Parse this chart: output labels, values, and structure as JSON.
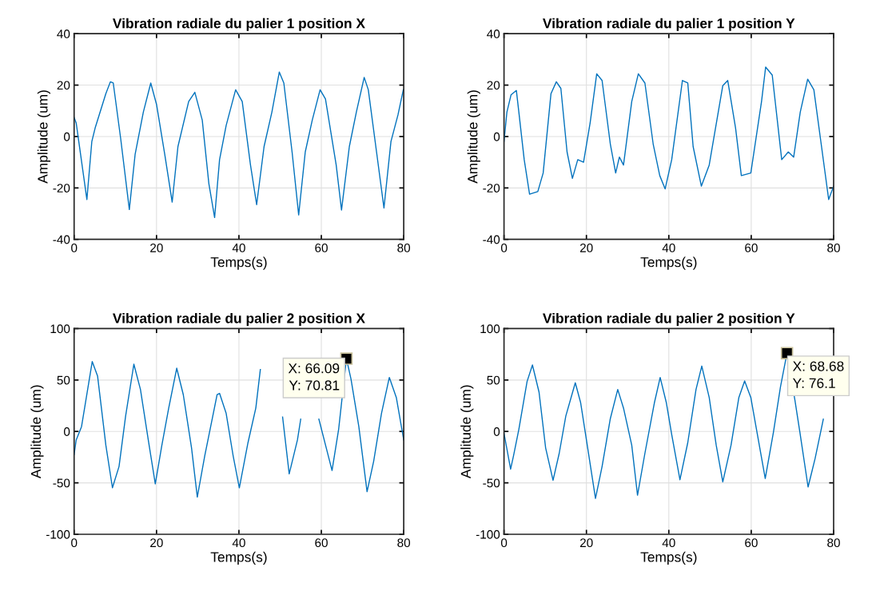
{
  "chart_data": [
    {
      "type": "line",
      "title": "Vibration radiale du palier 1 position X",
      "xlabel": "Temps(s)",
      "ylabel": "Amplitude (um)",
      "xlim": [
        0,
        80
      ],
      "xticks": [
        0,
        20,
        40,
        60,
        80
      ],
      "ylim": [
        -40,
        40
      ],
      "yticks": [
        -40,
        -20,
        0,
        20,
        40
      ],
      "grid": true,
      "series": [
        {
          "color": "#0072bd",
          "x": [
            0,
            0.5,
            3.1,
            4.3,
            5.1,
            7.7,
            8.8,
            9.5,
            11.3,
            13.4,
            14.8,
            16.8,
            18.6,
            20,
            22,
            23.8,
            25.2,
            27.8,
            29.3,
            31.1,
            32.7,
            34.1,
            35.3,
            36.9,
            39.2,
            40.8,
            42.8,
            44.3,
            46.1,
            48,
            49.8,
            50.9,
            52.9,
            54.5,
            56.1,
            57.8,
            59.7,
            61,
            63.6,
            64.9,
            66.8,
            68.5,
            70.4,
            71.4,
            73.4,
            75.2,
            76.9,
            78.6,
            79.9
          ],
          "values": [
            7.4,
            5.3,
            -24.5,
            -1.9,
            3.3,
            16.7,
            21.3,
            20.8,
            -0.8,
            -28.4,
            -7,
            9.5,
            20.8,
            12.5,
            -7,
            -25.5,
            -3.9,
            13.6,
            17.2,
            6.4,
            -18.3,
            -31.5,
            -9,
            4.3,
            18.2,
            13.6,
            -11,
            -26.5,
            -3.9,
            9.5,
            25.1,
            20.8,
            -6,
            -30.5,
            -6,
            6.4,
            18.2,
            14.6,
            -11,
            -28.6,
            -3.9,
            9.5,
            23,
            18.2,
            -6,
            -27.8,
            -1.9,
            8.4,
            18.2
          ]
        }
      ]
    },
    {
      "type": "line",
      "title": "Vibration radiale du palier 1 position Y",
      "xlabel": "Temps(s)",
      "ylabel": "Amplitude (um)",
      "xlim": [
        0,
        80
      ],
      "xticks": [
        0,
        20,
        40,
        60,
        80
      ],
      "ylim": [
        -40,
        40
      ],
      "yticks": [
        -40,
        -20,
        0,
        20,
        40
      ],
      "grid": true,
      "series": [
        {
          "color": "#0072bd",
          "x": [
            0,
            0.7,
            1.7,
            3,
            3.6,
            4.9,
            6.2,
            8.2,
            9.5,
            11.4,
            12.7,
            13.8,
            15.3,
            16.6,
            17.9,
            19.3,
            20.9,
            22.5,
            23.8,
            25.8,
            27.1,
            28,
            29,
            31,
            32.6,
            34.2,
            36.2,
            37.8,
            39.1,
            40.7,
            43.3,
            44.6,
            45.9,
            47.9,
            49.8,
            53.1,
            54.3,
            56.2,
            57.6,
            59.9,
            62.5,
            63.5,
            65.1,
            67.4,
            69,
            70.3,
            71.9,
            73.7,
            75.2,
            76.8,
            78.8,
            80
          ],
          "values": [
            -1.9,
            9.5,
            16.2,
            17.9,
            9.5,
            -9,
            -22.4,
            -21.4,
            -14.2,
            16.7,
            21.3,
            18.7,
            -6,
            -16.3,
            -9,
            -10,
            5.3,
            24.4,
            21.8,
            -2.9,
            -14.2,
            -8,
            -11.1,
            13.6,
            24.4,
            20.8,
            -2.9,
            -15.2,
            -20.4,
            -9,
            21.8,
            20.8,
            -3.9,
            -19.3,
            -11.1,
            19.8,
            21.8,
            3.3,
            -15.2,
            -14.2,
            13.6,
            27,
            23.9,
            -9,
            -6,
            -8,
            9.5,
            22.3,
            18.2,
            -0.8,
            -24.5,
            -19.3
          ]
        }
      ]
    },
    {
      "type": "line",
      "title": "Vibration radiale du palier 2 position X",
      "xlabel": "Temps(s)",
      "ylabel": "Amplitude (um)",
      "xlim": [
        0,
        80
      ],
      "xticks": [
        0,
        20,
        40,
        60,
        80
      ],
      "ylim": [
        -100,
        100
      ],
      "yticks": [
        -100,
        -50,
        0,
        50,
        100
      ],
      "grid": true,
      "annotations": [
        {
          "text": "X: 66.09\nY: 70.81",
          "x": 66.09,
          "y": 70.81
        }
      ],
      "series": [
        {
          "color": "#0072bd",
          "x": [
            0,
            0.5,
            1.8,
            4.4,
            5.7,
            7.7,
            9.3,
            10.9,
            12.5,
            14.5,
            16.1,
            18,
            19.7,
            21.3,
            22.96,
            24.9,
            26.5,
            28.5,
            29.9,
            31.7,
            34.7,
            35.3,
            36.9,
            38.6,
            40.1,
            42.2,
            44.1,
            45.2,
            48,
            50.6,
            52.2,
            54.2,
            55,
            57.5,
            59.4,
            62.6,
            64.2,
            66.09,
            67.2,
            69.1,
            71.1,
            72.7,
            74.6,
            76.5,
            78.2,
            80
          ],
          "values": [
            -22.5,
            -8.3,
            4.7,
            68,
            53.7,
            -13.4,
            -54.8,
            -34.1,
            15,
            65.4,
            40.8,
            -8.3,
            -51,
            -13.4,
            22.7,
            61.5,
            35.7,
            -16,
            -63.8,
            -23.8,
            35.7,
            37,
            17.6,
            -23.8,
            -54.8,
            -10.9,
            22.7,
            60.2,
            null,
            14,
            -41.3,
            -8.3,
            12,
            null,
            12,
            -38,
            2,
            70.81,
            51,
            4.7,
            -58.6,
            -29,
            17.6,
            52.5,
            33,
            -8.3
          ]
        }
      ]
    },
    {
      "type": "line",
      "title": "Vibration radiale du palier 2 position Y",
      "xlabel": "Temps(s)",
      "ylabel": "Amplitude (um)",
      "xlim": [
        0,
        80
      ],
      "xticks": [
        0,
        20,
        40,
        60,
        80
      ],
      "ylim": [
        -100,
        100
      ],
      "yticks": [
        -100,
        -50,
        0,
        50,
        100
      ],
      "grid": true,
      "annotations": [
        {
          "text": "X: 68.68\nY: 76.1",
          "x": 68.68,
          "y": 76.1
        }
      ],
      "series": [
        {
          "color": "#0072bd",
          "x": [
            0,
            1.6,
            2.3,
            3.6,
            5.6,
            6.9,
            8.5,
            10.1,
            11.9,
            13.4,
            15,
            17.3,
            18.6,
            20.2,
            22.2,
            23.8,
            25.8,
            27.6,
            29,
            31,
            32.4,
            34.2,
            36.5,
            37.9,
            39.4,
            40.7,
            42.7,
            44.6,
            46.6,
            48,
            49.8,
            51.5,
            53.1,
            55.1,
            57,
            58.4,
            59.9,
            61.5,
            63.4,
            65.4,
            67.1,
            68.68,
            70.6,
            71.8,
            73.8,
            75.5,
            77.5
          ],
          "values": [
            -1.8,
            -36.7,
            -23.8,
            2,
            48.6,
            64.6,
            38.2,
            -16,
            -47.5,
            -21.2,
            15,
            47.3,
            27.9,
            -13.4,
            -65.1,
            -34.1,
            12.4,
            40.8,
            22.7,
            -13.4,
            -62,
            -21.2,
            27.9,
            52.5,
            27.9,
            -3.1,
            -47,
            -10.9,
            40.8,
            63.6,
            33,
            -13.4,
            -49.1,
            -13.4,
            33,
            49.1,
            33,
            -3.1,
            -45.7,
            -0.5,
            43.4,
            76.1,
            30.5,
            -0.5,
            -54,
            -26.4,
            12
          ]
        }
      ]
    }
  ]
}
